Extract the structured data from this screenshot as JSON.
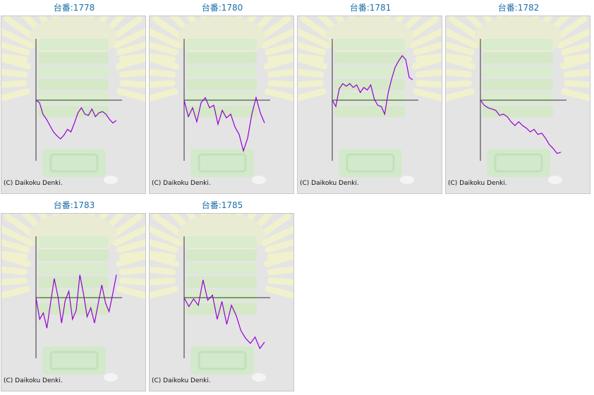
{
  "colors": {
    "line": "#9400d3",
    "axis": "#333333",
    "title": "#1a6fa8",
    "panel_bg": "#e4e4e4"
  },
  "copyright": "(C) Daikoku Denki.",
  "machines": [
    {
      "label": "台番:1778"
    },
    {
      "label": "台番:1780"
    },
    {
      "label": "台番:1781"
    },
    {
      "label": "台番:1782"
    },
    {
      "label": "台番:1783"
    },
    {
      "label": "台番:1785"
    }
  ],
  "chart_data": [
    {
      "type": "line",
      "title": "台番:1778",
      "series": [
        {
          "values": [
            0,
            -200,
            -1100,
            -1500,
            -2000,
            -2500,
            -2800,
            -3050,
            -2750,
            -2300,
            -2500,
            -1800,
            -1000,
            -600,
            -1100,
            -1200,
            -700,
            -1300,
            -1000,
            -900,
            -1100,
            -1500,
            -1800,
            -1600
          ]
        }
      ]
    },
    {
      "type": "line",
      "title": "台番:1780",
      "series": [
        {
          "values": [
            0,
            -1300,
            -600,
            -1700,
            -200,
            200,
            -600,
            -400,
            -1900,
            -800,
            -1400,
            -1100,
            -2100,
            -2700,
            -4000,
            -3000,
            -1100,
            200,
            -1000,
            -1800
          ]
        }
      ]
    },
    {
      "type": "line",
      "title": "台番:1781",
      "series": [
        {
          "values": [
            0,
            -500,
            900,
            1300,
            1100,
            1300,
            1000,
            1200,
            600,
            1000,
            800,
            1200,
            100,
            -400,
            -500,
            -1100,
            600,
            1700,
            2600,
            3100,
            3500,
            3200,
            1800,
            1600
          ]
        }
      ]
    },
    {
      "type": "line",
      "title": "台番:1782",
      "series": [
        {
          "values": [
            0,
            -400,
            -600,
            -700,
            -800,
            -1200,
            -1100,
            -1300,
            -1700,
            -2000,
            -1700,
            -2000,
            -2200,
            -2500,
            -2300,
            -2700,
            -2600,
            -3000,
            -3500,
            -3800,
            -4200,
            -4100
          ]
        }
      ]
    },
    {
      "type": "line",
      "title": "台番:1783",
      "series": [
        {
          "values": [
            0,
            -1700,
            -1200,
            -2400,
            -400,
            1500,
            100,
            -2000,
            -200,
            500,
            -1700,
            -1000,
            1800,
            300,
            -1500,
            -800,
            -2000,
            -500,
            1000,
            -400,
            -1100,
            300,
            1800
          ]
        }
      ]
    },
    {
      "type": "line",
      "title": "台番:1785",
      "series": [
        {
          "values": [
            0,
            -700,
            -100,
            -600,
            1400,
            -200,
            200,
            -1700,
            -300,
            -2100,
            -600,
            -1400,
            -2600,
            -3200,
            -3600,
            -3100,
            -4000,
            -3500
          ]
        }
      ]
    }
  ]
}
